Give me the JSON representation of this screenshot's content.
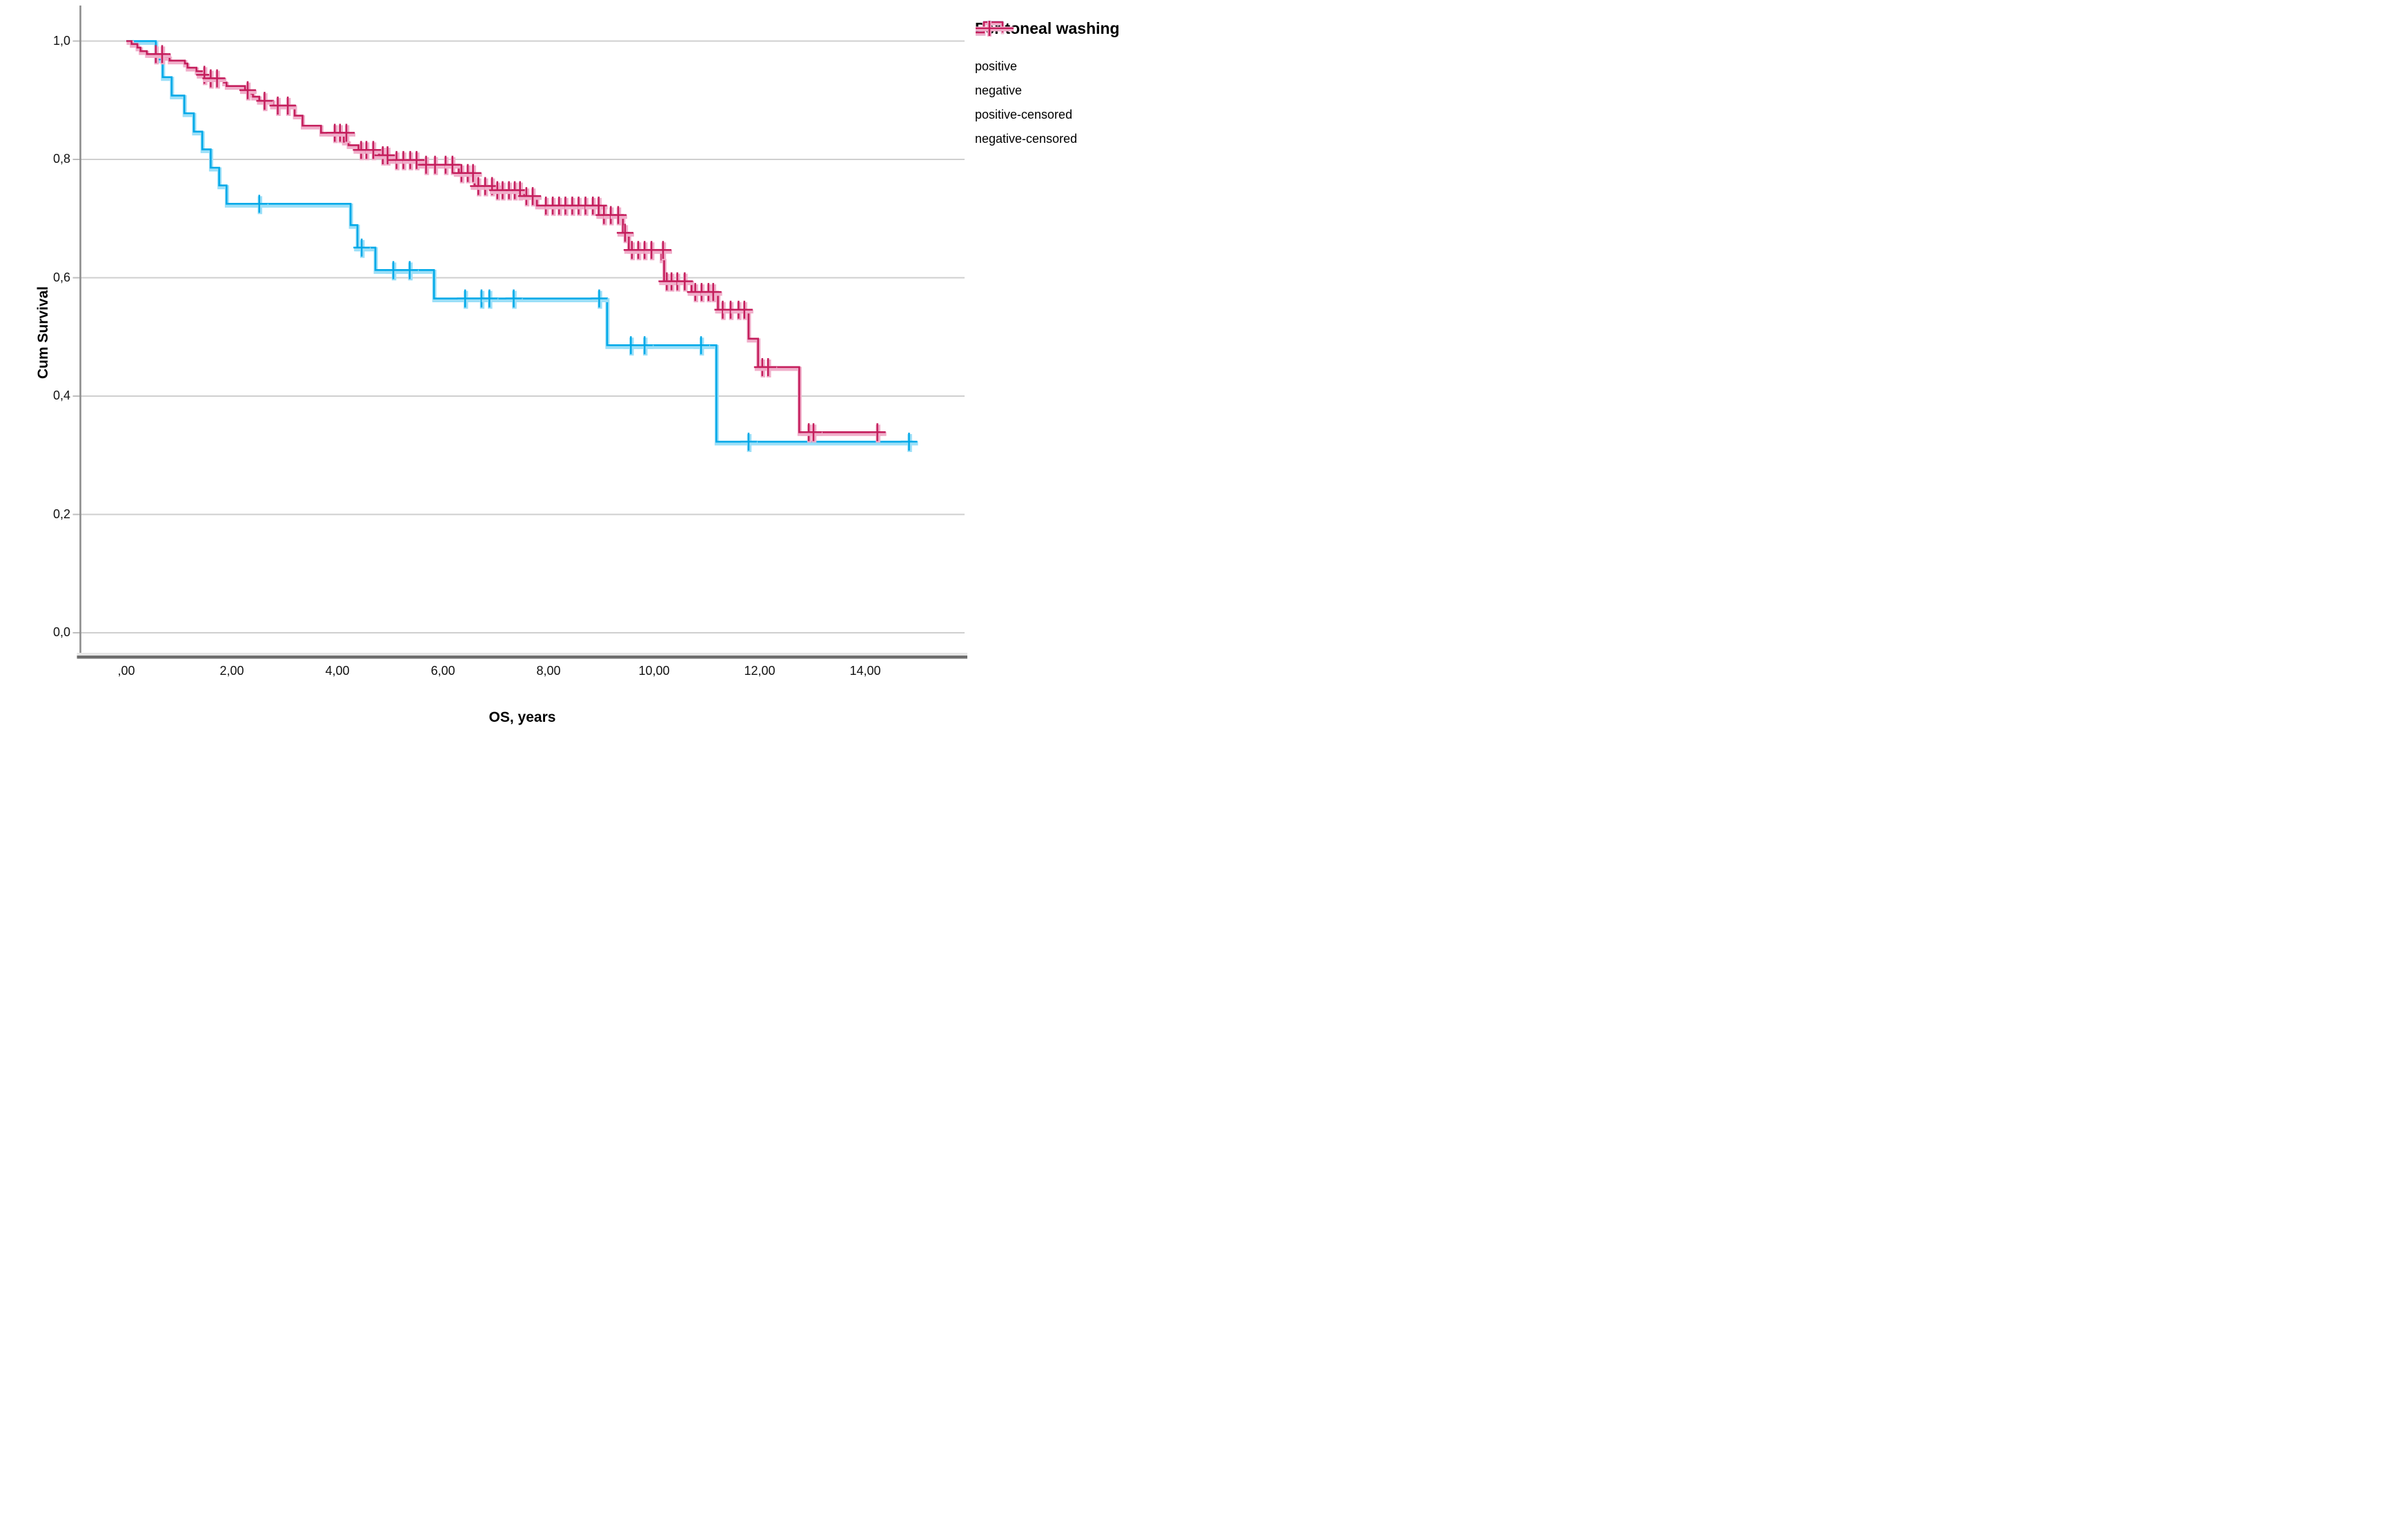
{
  "chart_data": {
    "type": "line",
    "variant": "kaplan-meier-step",
    "title": "",
    "xlabel": "OS, years",
    "ylabel": "Cum Survival",
    "grid": "horizontal-only",
    "background": "#FFFFFF",
    "gridline_color": "#CFCFCF",
    "axis_line_color": "#8E8E8E",
    "frame_dark_color": "#6E6E6E",
    "frame_light_color": "#E6E6E6",
    "x_axis": {
      "title": "OS, years",
      "range_displayed": [
        -0.87,
        15.87
      ],
      "ticks": [
        {
          "value": 0,
          "label": ",00"
        },
        {
          "value": 2,
          "label": "2,00"
        },
        {
          "value": 4,
          "label": "4,00"
        },
        {
          "value": 6,
          "label": "6,00"
        },
        {
          "value": 8,
          "label": "8,00"
        },
        {
          "value": 10,
          "label": "10,00"
        },
        {
          "value": 12,
          "label": "12,00"
        },
        {
          "value": 14,
          "label": "14,00"
        }
      ]
    },
    "y_axis": {
      "title": "Cum Survival",
      "range_displayed": [
        -0.04,
        1.06
      ],
      "ticks": [
        {
          "value": 1.0,
          "label": "1,0"
        },
        {
          "value": 0.8,
          "label": "0,8"
        },
        {
          "value": 0.6,
          "label": "0,6"
        },
        {
          "value": 0.4,
          "label": "0,4"
        },
        {
          "value": 0.2,
          "label": "0,2"
        },
        {
          "value": 0.0,
          "label": "0,0"
        }
      ]
    },
    "legend": {
      "title": "Peritoneal washing",
      "position": "outside-top-right",
      "items": [
        {
          "label": "positive",
          "type": "step-line",
          "series": 0
        },
        {
          "label": "negative",
          "type": "step-line",
          "series": 1
        },
        {
          "label": "positive-censored",
          "type": "censor-cross",
          "series": 0
        },
        {
          "label": "negative-censored",
          "type": "censor-cross",
          "series": 1
        }
      ]
    },
    "series": [
      {
        "name": "positive",
        "color": "#00A9E8",
        "halo_color": "#9BDFF8",
        "end_time": 14.91,
        "points": [
          [
            0,
            1.0
          ],
          [
            0.56,
            0.969
          ],
          [
            0.69,
            0.939
          ],
          [
            0.86,
            0.908
          ],
          [
            1.1,
            0.878
          ],
          [
            1.28,
            0.847
          ],
          [
            1.44,
            0.817
          ],
          [
            1.6,
            0.786
          ],
          [
            1.76,
            0.756
          ],
          [
            1.9,
            0.725
          ],
          [
            4.25,
            0.689
          ],
          [
            4.38,
            0.651
          ],
          [
            4.72,
            0.613
          ],
          [
            5.83,
            0.565
          ],
          [
            9.11,
            0.486
          ],
          [
            11.18,
            0.323
          ]
        ],
        "censored": [
          [
            2.52,
            0.725
          ],
          [
            4.46,
            0.651
          ],
          [
            5.06,
            0.613
          ],
          [
            5.37,
            0.613
          ],
          [
            6.42,
            0.565
          ],
          [
            6.73,
            0.565
          ],
          [
            6.88,
            0.565
          ],
          [
            7.34,
            0.565
          ],
          [
            8.96,
            0.565
          ],
          [
            9.56,
            0.486
          ],
          [
            9.82,
            0.486
          ],
          [
            10.89,
            0.486
          ],
          [
            11.79,
            0.323
          ],
          [
            14.83,
            0.323
          ]
        ]
      },
      {
        "name": "negative",
        "color": "#C41E5C",
        "halo_color": "#F0AECA",
        "end_time": 14.32,
        "points": [
          [
            0,
            1.0
          ],
          [
            0.1,
            0.995
          ],
          [
            0.21,
            0.989
          ],
          [
            0.27,
            0.983
          ],
          [
            0.39,
            0.978
          ],
          [
            0.75,
            0.973
          ],
          [
            0.82,
            0.967
          ],
          [
            1.11,
            0.962
          ],
          [
            1.16,
            0.955
          ],
          [
            1.33,
            0.949
          ],
          [
            1.47,
            0.943
          ],
          [
            1.57,
            0.937
          ],
          [
            1.85,
            0.93
          ],
          [
            1.9,
            0.924
          ],
          [
            2.25,
            0.917
          ],
          [
            2.32,
            0.911
          ],
          [
            2.4,
            0.906
          ],
          [
            2.52,
            0.899
          ],
          [
            2.78,
            0.891
          ],
          [
            3.19,
            0.874
          ],
          [
            3.34,
            0.857
          ],
          [
            3.69,
            0.845
          ],
          [
            4.12,
            0.83
          ],
          [
            4.21,
            0.824
          ],
          [
            4.4,
            0.816
          ],
          [
            4.79,
            0.807
          ],
          [
            5.06,
            0.799
          ],
          [
            5.62,
            0.791
          ],
          [
            6.3,
            0.777
          ],
          [
            6.6,
            0.755
          ],
          [
            6.99,
            0.748
          ],
          [
            7.54,
            0.738
          ],
          [
            7.78,
            0.722
          ],
          [
            8.96,
            0.706
          ],
          [
            9.41,
            0.676
          ],
          [
            9.52,
            0.647
          ],
          [
            10.14,
            0.631
          ],
          [
            10.19,
            0.594
          ],
          [
            10.71,
            0.576
          ],
          [
            11.21,
            0.546
          ],
          [
            11.79,
            0.497
          ],
          [
            11.97,
            0.449
          ],
          [
            12.75,
            0.339
          ]
        ],
        "censored": [
          [
            0.56,
            0.978
          ],
          [
            0.68,
            0.978
          ],
          [
            1.48,
            0.943
          ],
          [
            1.6,
            0.937
          ],
          [
            1.72,
            0.937
          ],
          [
            2.3,
            0.917
          ],
          [
            2.62,
            0.899
          ],
          [
            2.87,
            0.891
          ],
          [
            3.06,
            0.891
          ],
          [
            3.95,
            0.845
          ],
          [
            4.05,
            0.845
          ],
          [
            4.17,
            0.845
          ],
          [
            4.45,
            0.816
          ],
          [
            4.55,
            0.816
          ],
          [
            4.68,
            0.816
          ],
          [
            4.86,
            0.807
          ],
          [
            4.95,
            0.807
          ],
          [
            5.12,
            0.799
          ],
          [
            5.25,
            0.799
          ],
          [
            5.38,
            0.799
          ],
          [
            5.5,
            0.799
          ],
          [
            5.68,
            0.791
          ],
          [
            5.85,
            0.791
          ],
          [
            6.05,
            0.791
          ],
          [
            6.18,
            0.791
          ],
          [
            6.35,
            0.777
          ],
          [
            6.47,
            0.777
          ],
          [
            6.57,
            0.777
          ],
          [
            6.67,
            0.755
          ],
          [
            6.8,
            0.755
          ],
          [
            6.93,
            0.755
          ],
          [
            7.03,
            0.748
          ],
          [
            7.13,
            0.748
          ],
          [
            7.25,
            0.748
          ],
          [
            7.36,
            0.748
          ],
          [
            7.46,
            0.748
          ],
          [
            7.58,
            0.738
          ],
          [
            7.7,
            0.738
          ],
          [
            7.95,
            0.722
          ],
          [
            8.08,
            0.722
          ],
          [
            8.2,
            0.722
          ],
          [
            8.32,
            0.722
          ],
          [
            8.45,
            0.722
          ],
          [
            8.57,
            0.722
          ],
          [
            8.7,
            0.722
          ],
          [
            8.84,
            0.722
          ],
          [
            8.95,
            0.722
          ],
          [
            9.05,
            0.706
          ],
          [
            9.18,
            0.706
          ],
          [
            9.32,
            0.706
          ],
          [
            9.45,
            0.676
          ],
          [
            9.58,
            0.647
          ],
          [
            9.7,
            0.647
          ],
          [
            9.82,
            0.647
          ],
          [
            9.95,
            0.647
          ],
          [
            10.17,
            0.647
          ],
          [
            10.24,
            0.594
          ],
          [
            10.33,
            0.594
          ],
          [
            10.44,
            0.594
          ],
          [
            10.58,
            0.594
          ],
          [
            10.78,
            0.576
          ],
          [
            10.9,
            0.576
          ],
          [
            11.03,
            0.576
          ],
          [
            11.12,
            0.576
          ],
          [
            11.3,
            0.546
          ],
          [
            11.45,
            0.546
          ],
          [
            11.6,
            0.546
          ],
          [
            11.71,
            0.546
          ],
          [
            12.05,
            0.449
          ],
          [
            12.16,
            0.449
          ],
          [
            12.93,
            0.339
          ],
          [
            13.02,
            0.339
          ],
          [
            14.23,
            0.339
          ]
        ]
      }
    ]
  }
}
